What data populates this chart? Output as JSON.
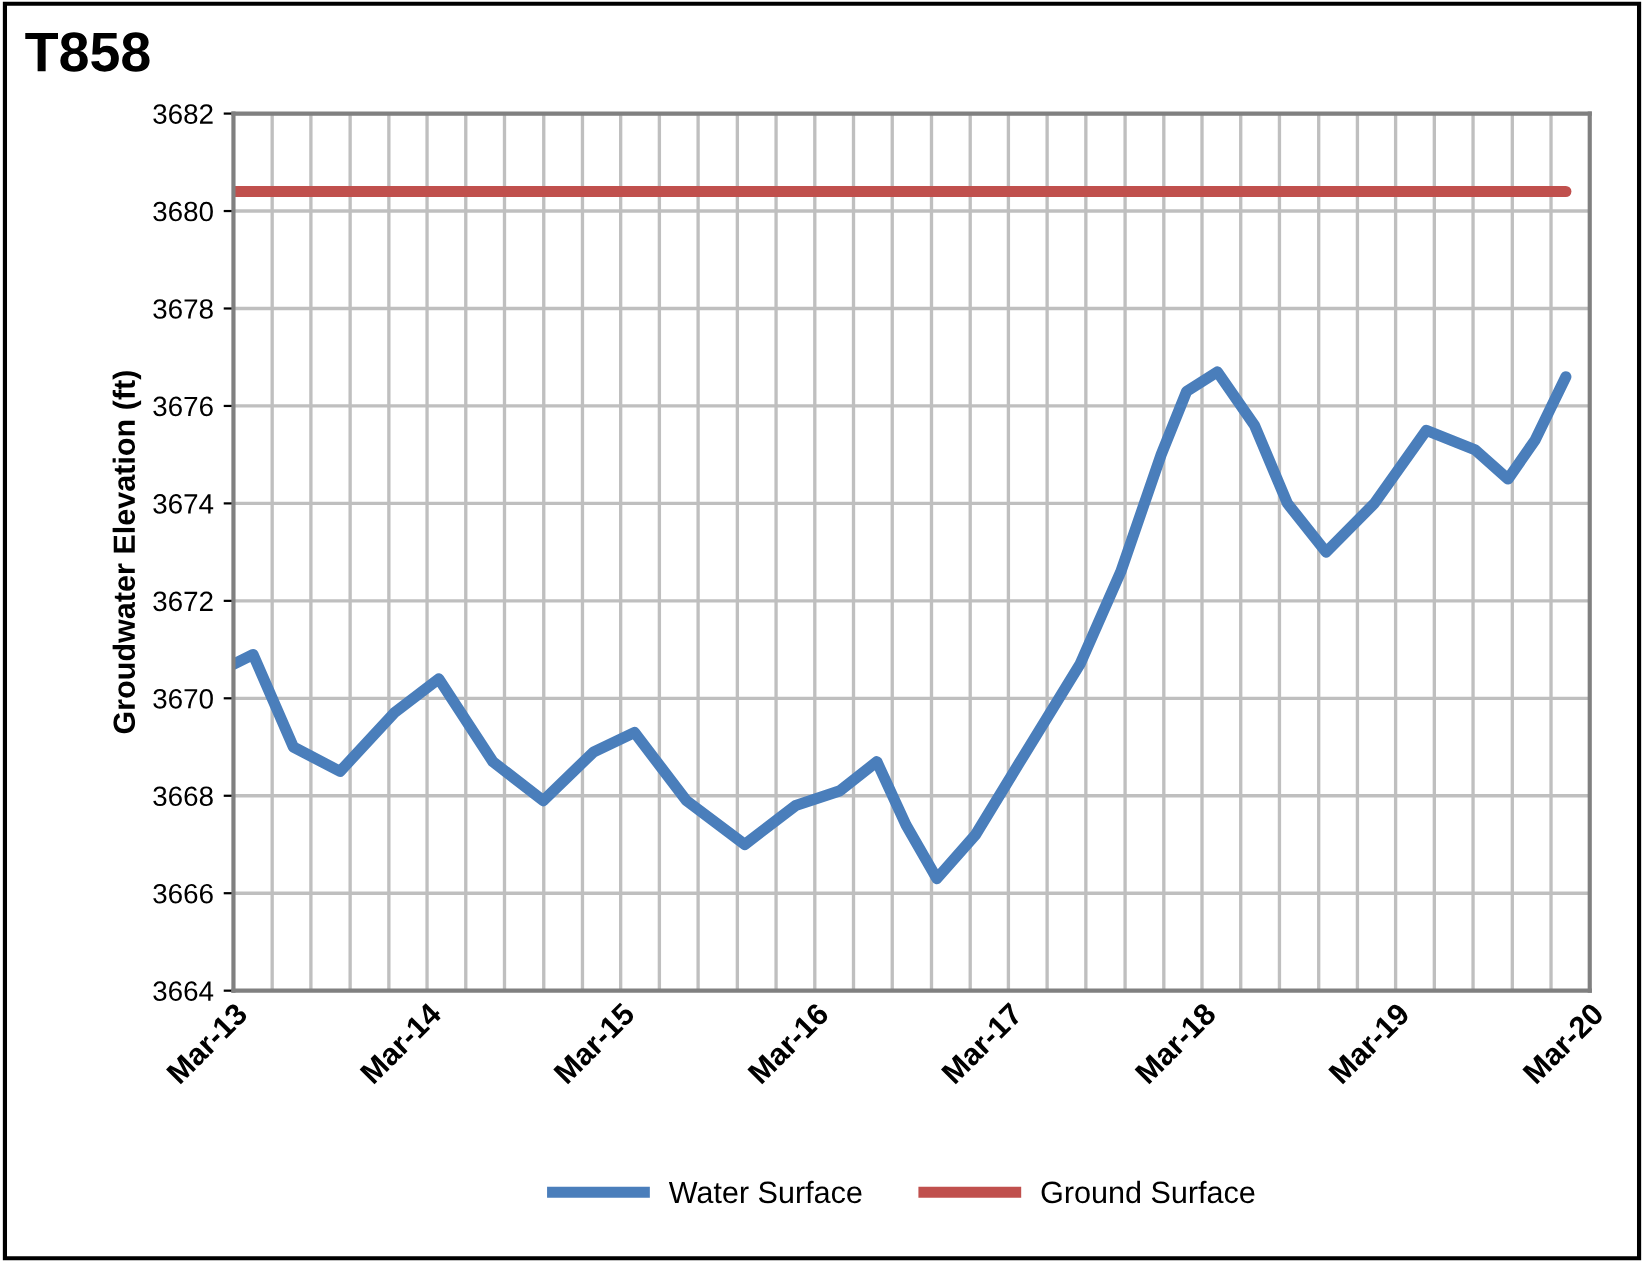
{
  "chart_data": {
    "type": "line",
    "title": "T858",
    "ylabel": "Groudwater Elevation (ft)",
    "series": [
      {
        "name": "Water Surface",
        "color": "#4a7ebb",
        "x": [
          "2013-03-01",
          "2013-04-07",
          "2013-06-22",
          "2013-09-18",
          "2013-12-29",
          "2014-03-23",
          "2014-07-03",
          "2014-10-06",
          "2015-01-09",
          "2015-03-27",
          "2015-07-03",
          "2015-10-21",
          "2016-01-25",
          "2016-04-17",
          "2016-06-26",
          "2016-08-20",
          "2016-10-17",
          "2016-12-29",
          "2017-03-23",
          "2017-07-14",
          "2017-09-29",
          "2017-12-14",
          "2018-01-31",
          "2018-03-30",
          "2018-06-08",
          "2018-08-09",
          "2018-10-21",
          "2019-01-20",
          "2019-04-28",
          "2019-07-29",
          "2019-09-29",
          "2019-11-19",
          "2020-01-16"
        ],
        "values": [
          3670.7,
          3670.9,
          3669.0,
          3668.5,
          3669.7,
          3670.4,
          3668.7,
          3667.9,
          3668.9,
          3669.3,
          3667.9,
          3667.0,
          3667.8,
          3668.1,
          3668.7,
          3667.4,
          3666.3,
          3667.2,
          3668.7,
          3670.7,
          3672.6,
          3675.0,
          3676.3,
          3676.7,
          3675.6,
          3674.0,
          3673.0,
          3674.0,
          3675.5,
          3675.1,
          3674.5,
          3675.3,
          3676.6
        ]
      },
      {
        "name": "Ground Surface",
        "color": "#c0504d",
        "x": [
          "2013-03-01",
          "2020-01-16"
        ],
        "values": [
          3680.4,
          3680.4
        ]
      }
    ],
    "xlim": [
      "2013-03-01",
      "2020-03-01"
    ],
    "xticks": [
      {
        "value": "2013-03-01",
        "label": "Mar-13"
      },
      {
        "value": "2013-05-13",
        "label": null
      },
      {
        "value": "2013-07-25",
        "label": null
      },
      {
        "value": "2013-10-07",
        "label": null
      },
      {
        "value": "2013-12-19",
        "label": null
      },
      {
        "value": "2014-03-01",
        "label": "Mar-14"
      },
      {
        "value": "2014-05-13",
        "label": null
      },
      {
        "value": "2014-07-25",
        "label": null
      },
      {
        "value": "2014-10-07",
        "label": null
      },
      {
        "value": "2014-12-19",
        "label": null
      },
      {
        "value": "2015-03-01",
        "label": "Mar-15"
      },
      {
        "value": "2015-05-13",
        "label": null
      },
      {
        "value": "2015-07-25",
        "label": null
      },
      {
        "value": "2015-10-07",
        "label": null
      },
      {
        "value": "2015-12-19",
        "label": null
      },
      {
        "value": "2016-03-01",
        "label": "Mar-16"
      },
      {
        "value": "2016-05-13",
        "label": null
      },
      {
        "value": "2016-07-25",
        "label": null
      },
      {
        "value": "2016-10-07",
        "label": null
      },
      {
        "value": "2016-12-19",
        "label": null
      },
      {
        "value": "2017-03-01",
        "label": "Mar-17"
      },
      {
        "value": "2017-05-13",
        "label": null
      },
      {
        "value": "2017-07-25",
        "label": null
      },
      {
        "value": "2017-10-07",
        "label": null
      },
      {
        "value": "2017-12-19",
        "label": null
      },
      {
        "value": "2018-03-01",
        "label": "Mar-18"
      },
      {
        "value": "2018-05-13",
        "label": null
      },
      {
        "value": "2018-07-25",
        "label": null
      },
      {
        "value": "2018-10-07",
        "label": null
      },
      {
        "value": "2018-12-19",
        "label": null
      },
      {
        "value": "2019-03-01",
        "label": "Mar-19"
      },
      {
        "value": "2019-05-13",
        "label": null
      },
      {
        "value": "2019-07-25",
        "label": null
      },
      {
        "value": "2019-10-07",
        "label": null
      },
      {
        "value": "2019-12-19",
        "label": null
      },
      {
        "value": "2020-03-01",
        "label": "Mar-20"
      }
    ],
    "ylim": [
      3664,
      3682
    ],
    "yticks": [
      3664,
      3666,
      3668,
      3670,
      3672,
      3674,
      3676,
      3678,
      3680,
      3682
    ],
    "grid": true,
    "legend": "bottom",
    "marker": "none",
    "line_style": "solid"
  }
}
